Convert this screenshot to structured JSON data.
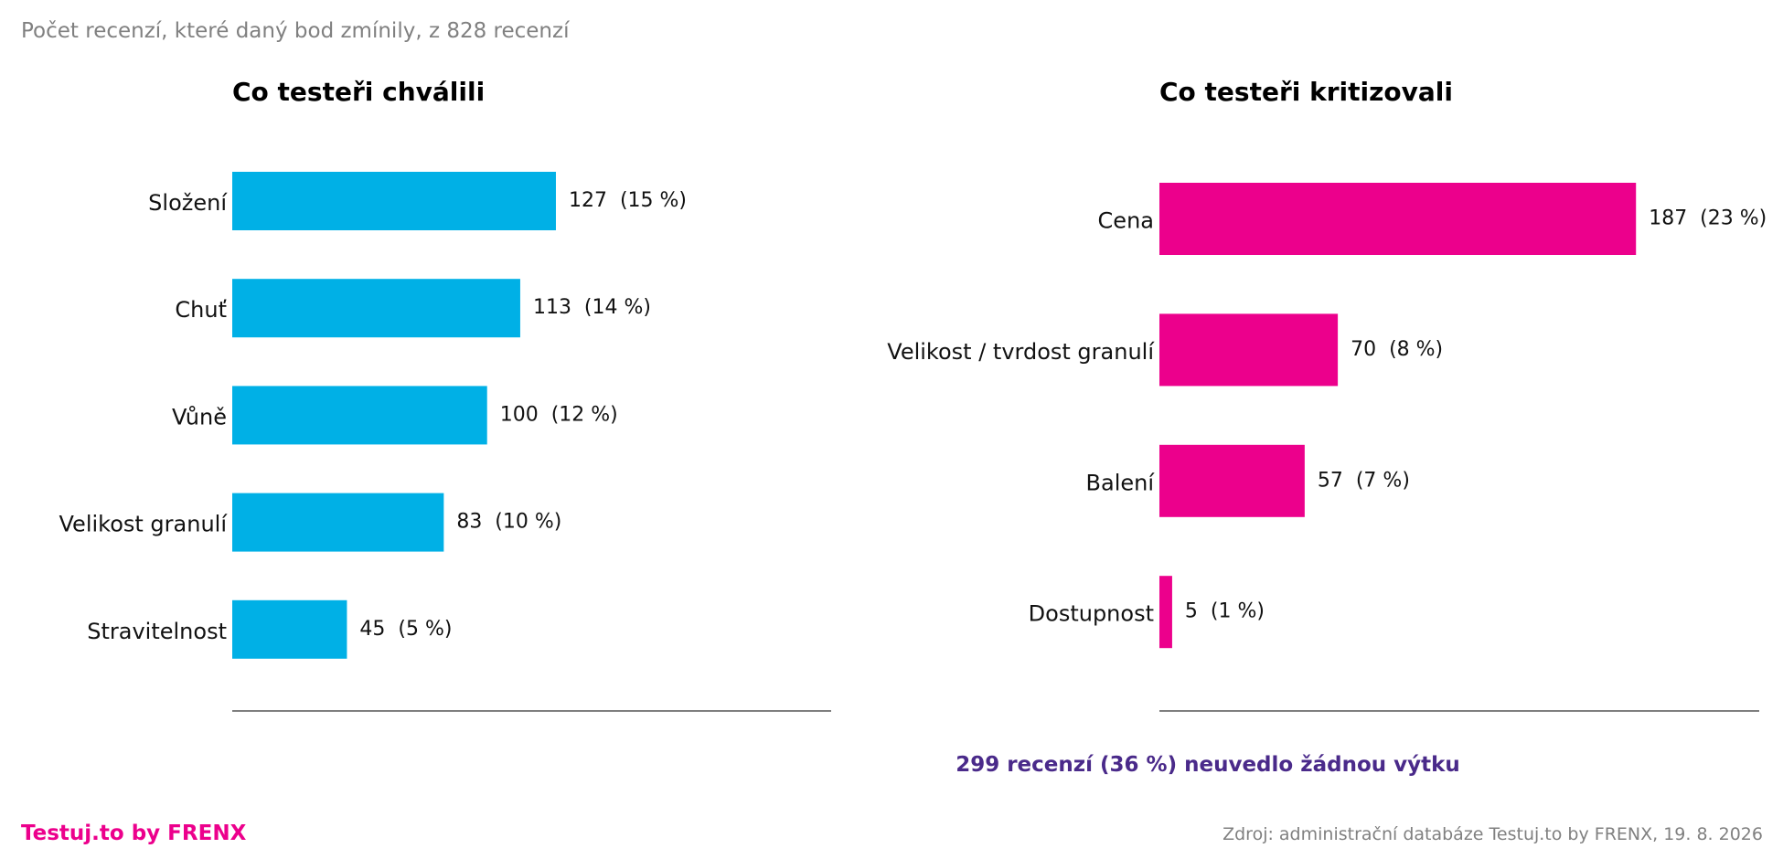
{
  "header": {
    "subtitle": "Počet recenzí, které daný bod zmínily, z 828 recenzí"
  },
  "footer": {
    "brand": "Testuj.to by FRENX",
    "source": "Zdroj: administrační databáze Testuj.to by FRENX, 19. 8. 2026"
  },
  "note": {
    "text": "299 recenzí (36 %) neuvedlo žádnou výtku"
  },
  "colors": {
    "praise": "#00b0e6",
    "criticism": "#ec008c",
    "note": "#4a2a8a",
    "brand": "#ec008c",
    "muted": "#808080",
    "label": "#111111",
    "axis": "#333333"
  },
  "chart_data": [
    {
      "type": "bar",
      "orientation": "horizontal",
      "title": "Co testeři chválili",
      "categories": [
        "Složení",
        "Chuť",
        "Vůně",
        "Velikost granulí",
        "Stravitelnost"
      ],
      "values": [
        127,
        113,
        100,
        83,
        45
      ],
      "percents": [
        15,
        14,
        12,
        10,
        5
      ],
      "value_labels": [
        "127  (15 %)",
        "113  (14 %)",
        "100  (12 %)",
        "83  (10 %)",
        "45  (5 %)"
      ],
      "xlim": [
        0,
        235
      ],
      "grid": false
    },
    {
      "type": "bar",
      "orientation": "horizontal",
      "title": "Co testeři kritizovali",
      "categories": [
        "Cena",
        "Velikost / tvrdost granulí",
        "Balení",
        "Dostupnost"
      ],
      "values": [
        187,
        70,
        57,
        5
      ],
      "percents": [
        23,
        8,
        7,
        1
      ],
      "value_labels": [
        "187  (23 %)",
        "70  (8 %)",
        "57  (7 %)",
        "5  (1 %)"
      ],
      "xlim": [
        0,
        235
      ],
      "grid": false
    }
  ]
}
